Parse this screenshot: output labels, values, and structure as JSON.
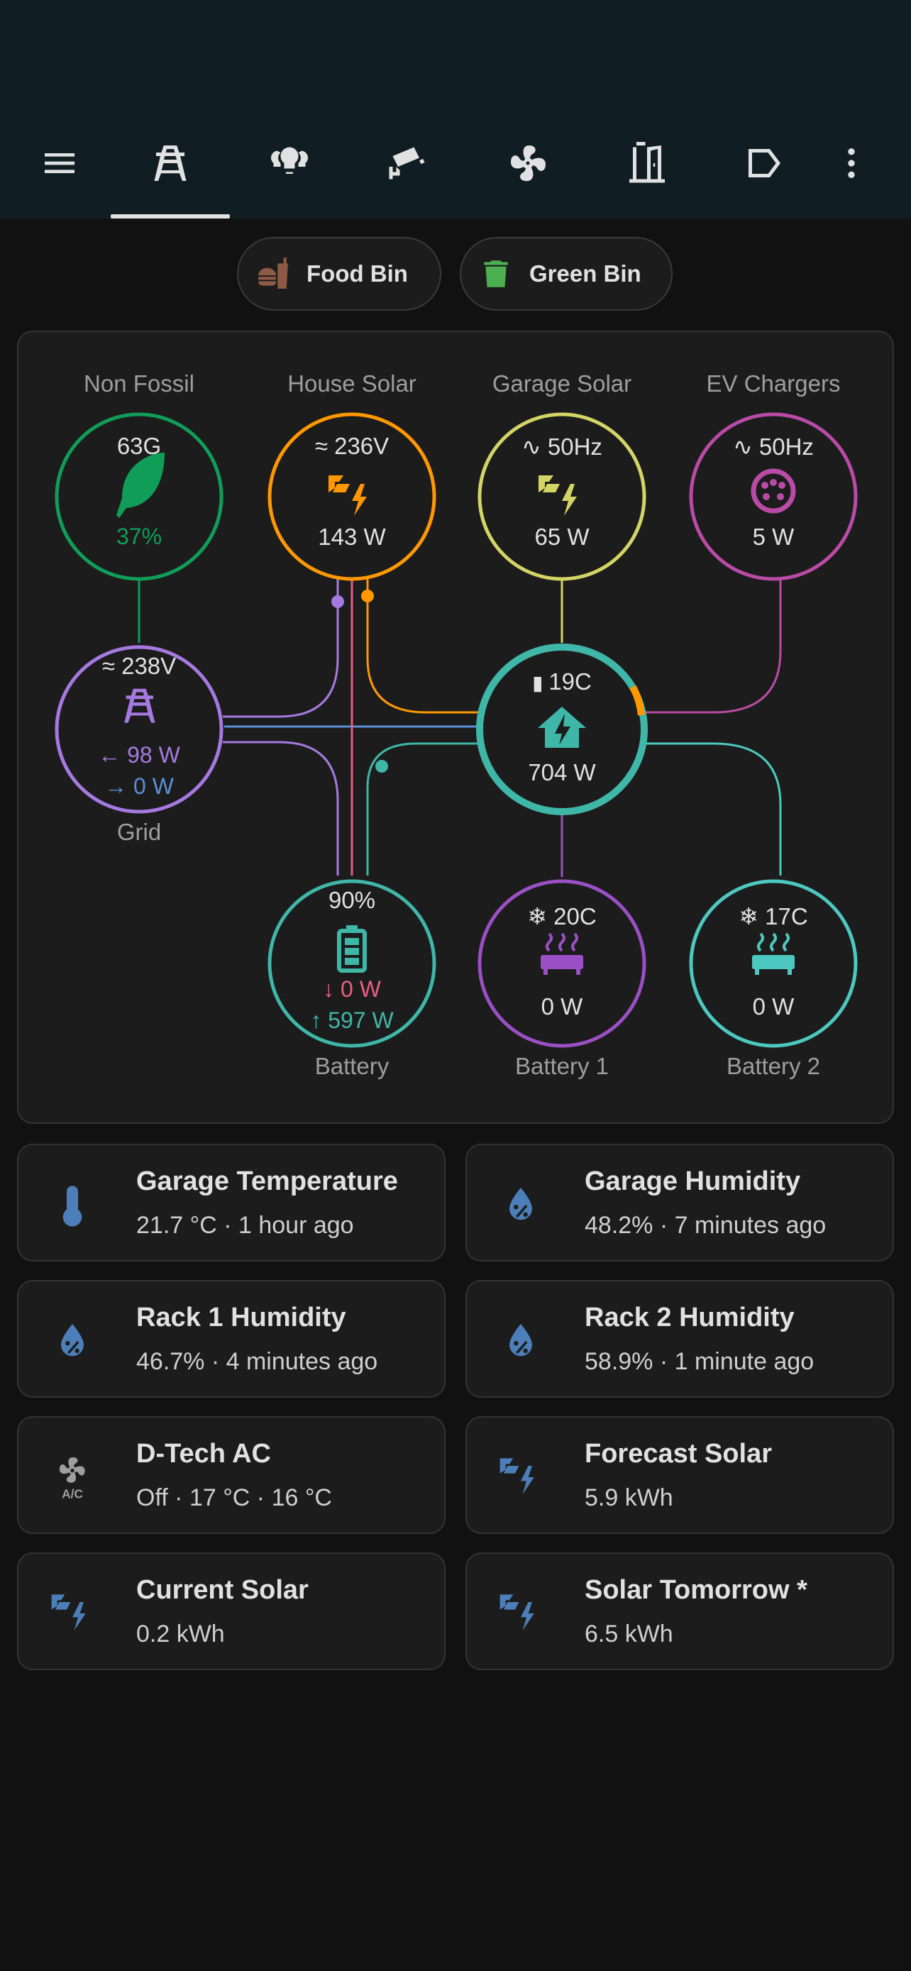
{
  "colors": {
    "header_bg": "#101e24",
    "card_bg": "#1c1c1c",
    "non_fossil": "#0f9d58",
    "house_solar": "#ff9800",
    "garage_solar": "#d4d466",
    "ev": "#b94ba6",
    "grid": "#a679e0",
    "home": "#3fb7a8",
    "battery": "#3fb7a8",
    "battery1": "#9b4fc5",
    "battery2": "#4cc8c0",
    "grid_export": "#5b8fd8",
    "battery_in": "#e85e88",
    "tile_icon": "#4c7fb9"
  },
  "toolbar": {
    "menu_icon": "menu-icon",
    "tabs": [
      {
        "icon": "transmission-tower-icon",
        "active": true
      },
      {
        "icon": "lightbulb-group-icon",
        "active": false
      },
      {
        "icon": "cctv-icon",
        "active": false
      },
      {
        "icon": "fan-icon",
        "active": false
      },
      {
        "icon": "door-open-icon",
        "active": false
      },
      {
        "icon": "label-arrow-icon",
        "active": false
      }
    ],
    "overflow_icon": "dots-vertical-icon"
  },
  "chips": [
    {
      "label": "Food Bin",
      "icon": "food-icon",
      "color": "#8d5a45"
    },
    {
      "label": "Green Bin",
      "icon": "trash-can-icon",
      "color": "#4caf50"
    }
  ],
  "energy_flow": {
    "non_fossil": {
      "label": "Non Fossil",
      "top": "63G",
      "percent": "37%"
    },
    "house_solar": {
      "label": "House Solar",
      "voltage": "236V",
      "power": "143 W"
    },
    "garage_solar": {
      "label": "Garage Solar",
      "freq": "50Hz",
      "power": "65 W"
    },
    "ev_chargers": {
      "label": "EV Chargers",
      "freq": "50Hz",
      "power": "5 W"
    },
    "grid": {
      "label": "Grid",
      "voltage": "238V",
      "import": "98 W",
      "export": "0 W"
    },
    "home": {
      "temp": "19C",
      "power": "704 W"
    },
    "battery": {
      "label": "Battery",
      "soc": "90%",
      "in": "0 W",
      "out": "597 W"
    },
    "battery1": {
      "label": "Battery 1",
      "temp": "20C",
      "power": "0 W"
    },
    "battery2": {
      "label": "Battery 2",
      "temp": "17C",
      "power": "0 W"
    }
  },
  "tiles": [
    {
      "name": "Garage Temperature",
      "sub": "21.7 °C · 1 hour ago",
      "icon": "thermometer-icon"
    },
    {
      "name": "Garage Humidity",
      "sub": "48.2% · 7 minutes ago",
      "icon": "water-percent-icon"
    },
    {
      "name": "Rack 1 Humidity",
      "sub": "46.7% · 4 minutes ago",
      "icon": "water-percent-icon"
    },
    {
      "name": "Rack 2 Humidity",
      "sub": "58.9% · 1 minute ago",
      "icon": "water-percent-icon"
    },
    {
      "name": "D-Tech AC",
      "sub": "Off · 17 °C · 16 °C",
      "icon": "air-conditioner-icon"
    },
    {
      "name": "Forecast Solar",
      "sub": "5.9 kWh",
      "icon": "solar-power-icon"
    },
    {
      "name": "Current Solar",
      "sub": "0.2 kWh",
      "icon": "solar-power-icon"
    },
    {
      "name": "Solar Tomorrow *",
      "sub": "6.5 kWh",
      "icon": "solar-power-icon"
    }
  ]
}
